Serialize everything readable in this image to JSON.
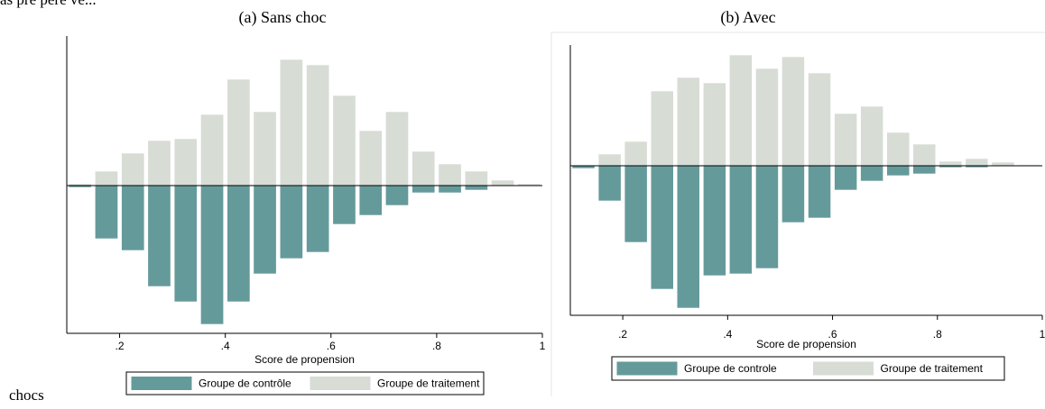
{
  "page": {
    "top_fragment": "as pré pere ve...",
    "bottom_word": "chocs"
  },
  "chart_data": [
    {
      "type": "bar",
      "title": "(a) Sans choc",
      "xlabel": "Score de propension",
      "ylabel": "",
      "x_ticks": [
        ".2",
        ".4",
        ".6",
        ".8",
        "1"
      ],
      "xlim": [
        0.1,
        1.0
      ],
      "grid": false,
      "legend_position": "bottom",
      "series": [
        {
          "name": "Groupe de contrôle",
          "color": "#659a9b",
          "direction": "down",
          "x": [
            0.125,
            0.175,
            0.225,
            0.275,
            0.325,
            0.375,
            0.425,
            0.475,
            0.525,
            0.575,
            0.625,
            0.675,
            0.725,
            0.775,
            0.825,
            0.875,
            0.925,
            0.975
          ],
          "values": [
            2,
            59,
            72,
            112,
            129,
            154,
            129,
            98,
            81,
            74,
            43,
            33,
            22,
            8,
            8,
            5,
            0,
            0
          ]
        },
        {
          "name": "Groupe de traitement",
          "color": "#d7dcd5",
          "direction": "up",
          "x": [
            0.125,
            0.175,
            0.225,
            0.275,
            0.325,
            0.375,
            0.425,
            0.475,
            0.525,
            0.575,
            0.625,
            0.675,
            0.725,
            0.775,
            0.825,
            0.875,
            0.925,
            0.975
          ],
          "values": [
            2,
            16,
            36,
            50,
            52,
            79,
            118,
            82,
            140,
            134,
            100,
            61,
            82,
            38,
            24,
            16,
            6,
            2
          ]
        }
      ]
    },
    {
      "type": "bar",
      "title": "(b) Avec",
      "xlabel": "Score de propension",
      "ylabel": "",
      "x_ticks": [
        ".2",
        ".4",
        ".6",
        ".8",
        "1"
      ],
      "xlim": [
        0.1,
        1.0
      ],
      "grid": false,
      "legend_position": "bottom",
      "series": [
        {
          "name": "Groupe de controle",
          "color": "#659a9b",
          "direction": "down",
          "x": [
            0.125,
            0.175,
            0.225,
            0.275,
            0.325,
            0.375,
            0.425,
            0.475,
            0.525,
            0.575,
            0.625,
            0.675,
            0.725,
            0.775,
            0.825,
            0.875,
            0.925,
            0.975
          ],
          "values": [
            3,
            39,
            85,
            137,
            158,
            122,
            120,
            114,
            63,
            58,
            27,
            17,
            11,
            9,
            2,
            2,
            0,
            0
          ]
        },
        {
          "name": "Groupe de traitement",
          "color": "#d7dcd5",
          "direction": "up",
          "x": [
            0.125,
            0.175,
            0.225,
            0.275,
            0.325,
            0.375,
            0.425,
            0.475,
            0.525,
            0.575,
            0.625,
            0.675,
            0.725,
            0.775,
            0.825,
            0.875,
            0.925,
            0.975
          ],
          "values": [
            0,
            13,
            27,
            83,
            98,
            92,
            123,
            108,
            121,
            103,
            58,
            66,
            37,
            24,
            5,
            8,
            4,
            1
          ]
        }
      ]
    }
  ]
}
